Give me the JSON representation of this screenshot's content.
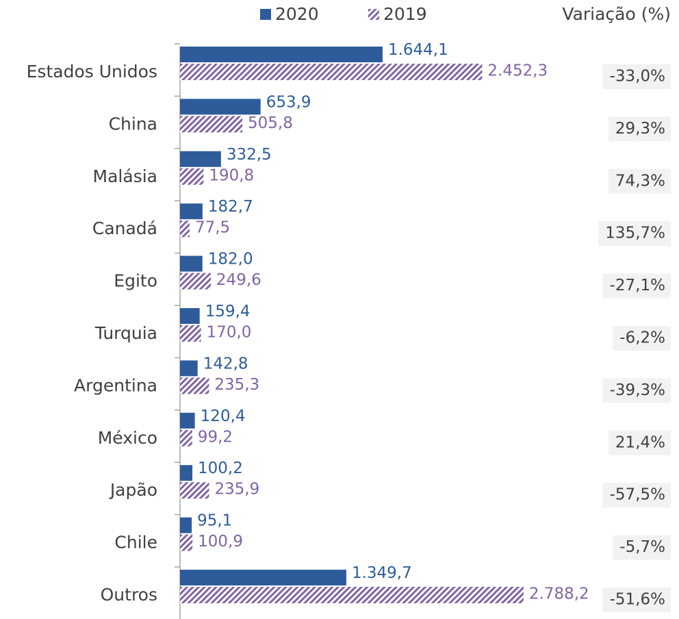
{
  "chart_data": {
    "type": "bar",
    "orientation": "horizontal",
    "categories": [
      "Estados Unidos",
      "China",
      "Malásia",
      "Canadá",
      "Egito",
      "Turquia",
      "Argentina",
      "México",
      "Japão",
      "Chile",
      "Outros"
    ],
    "series": [
      {
        "name": "2020",
        "color": "#2e5c9a",
        "values": [
          1644.1,
          653.9,
          332.5,
          182.7,
          182.0,
          159.4,
          142.8,
          120.4,
          100.2,
          95.1,
          1349.7
        ],
        "value_labels": [
          "1.644,1",
          "653,9",
          "332,5",
          "182,7",
          "182,0",
          "159,4",
          "142,8",
          "120,4",
          "100,2",
          "95,1",
          "1.349,7"
        ]
      },
      {
        "name": "2019",
        "color": "#8064a2",
        "pattern": "hatch",
        "values": [
          2452.3,
          505.8,
          190.8,
          77.5,
          249.6,
          170.0,
          235.3,
          99.2,
          235.9,
          100.9,
          2788.2
        ],
        "value_labels": [
          "2.452,3",
          "505,8",
          "190,8",
          "77,5",
          "249,6",
          "170,0",
          "235,3",
          "99,2",
          "235,9",
          "100,9",
          "2.788,2"
        ]
      }
    ],
    "variation": {
      "title": "Variação (%)",
      "labels": [
        "-33,0%",
        "29,3%",
        "74,3%",
        "135,7%",
        "-27,1%",
        "-6,2%",
        "-39,3%",
        "21,4%",
        "-57,5%",
        "-5,7%",
        "-51,6%"
      ]
    },
    "xlim": [
      0,
      3300
    ]
  }
}
